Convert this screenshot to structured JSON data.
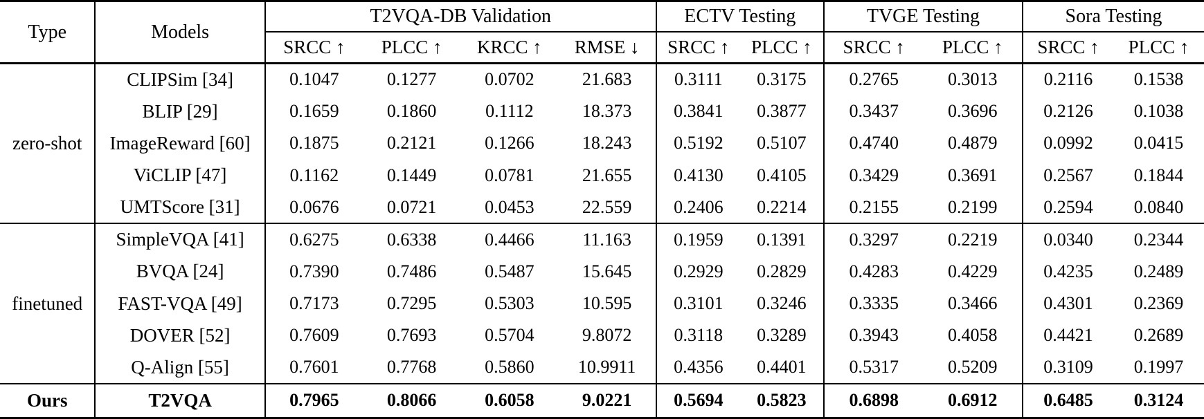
{
  "table": {
    "header": {
      "type_label": "Type",
      "models_label": "Models",
      "groups": [
        {
          "label": "T2VQA-DB Validation",
          "metrics": [
            "SRCC ↑",
            "PLCC ↑",
            "KRCC ↑",
            "RMSE ↓"
          ]
        },
        {
          "label": "ECTV Testing",
          "metrics": [
            "SRCC ↑",
            "PLCC ↑"
          ]
        },
        {
          "label": "TVGE Testing",
          "metrics": [
            "SRCC ↑",
            "PLCC ↑"
          ]
        },
        {
          "label": "Sora Testing",
          "metrics": [
            "SRCC ↑",
            "PLCC ↑"
          ]
        }
      ]
    },
    "sections": [
      {
        "type_label": "zero-shot",
        "bold": false,
        "rows": [
          {
            "model": "CLIPSim [34]",
            "values": [
              "0.1047",
              "0.1277",
              "0.0702",
              "21.683",
              "0.3111",
              "0.3175",
              "0.2765",
              "0.3013",
              "0.2116",
              "0.1538"
            ]
          },
          {
            "model": "BLIP [29]",
            "values": [
              "0.1659",
              "0.1860",
              "0.1112",
              "18.373",
              "0.3841",
              "0.3877",
              "0.3437",
              "0.3696",
              "0.2126",
              "0.1038"
            ]
          },
          {
            "model": "ImageReward [60]",
            "values": [
              "0.1875",
              "0.2121",
              "0.1266",
              "18.243",
              "0.5192",
              "0.5107",
              "0.4740",
              "0.4879",
              "0.0992",
              "0.0415"
            ]
          },
          {
            "model": "ViCLIP [47]",
            "values": [
              "0.1162",
              "0.1449",
              "0.0781",
              "21.655",
              "0.4130",
              "0.4105",
              "0.3429",
              "0.3691",
              "0.2567",
              "0.1844"
            ]
          },
          {
            "model": "UMTScore [31]",
            "values": [
              "0.0676",
              "0.0721",
              "0.0453",
              "22.559",
              "0.2406",
              "0.2214",
              "0.2155",
              "0.2199",
              "0.2594",
              "0.0840"
            ]
          }
        ]
      },
      {
        "type_label": "finetuned",
        "bold": false,
        "rows": [
          {
            "model": "SimpleVQA [41]",
            "values": [
              "0.6275",
              "0.6338",
              "0.4466",
              "11.163",
              "0.1959",
              "0.1391",
              "0.3297",
              "0.2219",
              "0.0340",
              "0.2344"
            ]
          },
          {
            "model": "BVQA [24]",
            "values": [
              "0.7390",
              "0.7486",
              "0.5487",
              "15.645",
              "0.2929",
              "0.2829",
              "0.4283",
              "0.4229",
              "0.4235",
              "0.2489"
            ]
          },
          {
            "model": "FAST-VQA [49]",
            "values": [
              "0.7173",
              "0.7295",
              "0.5303",
              "10.595",
              "0.3101",
              "0.3246",
              "0.3335",
              "0.3466",
              "0.4301",
              "0.2369"
            ]
          },
          {
            "model": "DOVER [52]",
            "values": [
              "0.7609",
              "0.7693",
              "0.5704",
              "9.8072",
              "0.3118",
              "0.3289",
              "0.3943",
              "0.4058",
              "0.4421",
              "0.2689"
            ]
          },
          {
            "model": "Q-Align [55]",
            "values": [
              "0.7601",
              "0.7768",
              "0.5860",
              "10.9911",
              "0.4356",
              "0.4401",
              "0.5317",
              "0.5209",
              "0.3109",
              "0.1997"
            ]
          }
        ]
      },
      {
        "type_label": "Ours",
        "bold": true,
        "rows": [
          {
            "model": "T2VQA",
            "values": [
              "0.7965",
              "0.8066",
              "0.6058",
              "9.0221",
              "0.5694",
              "0.5823",
              "0.6898",
              "0.6912",
              "0.6485",
              "0.3124"
            ]
          }
        ]
      }
    ]
  }
}
